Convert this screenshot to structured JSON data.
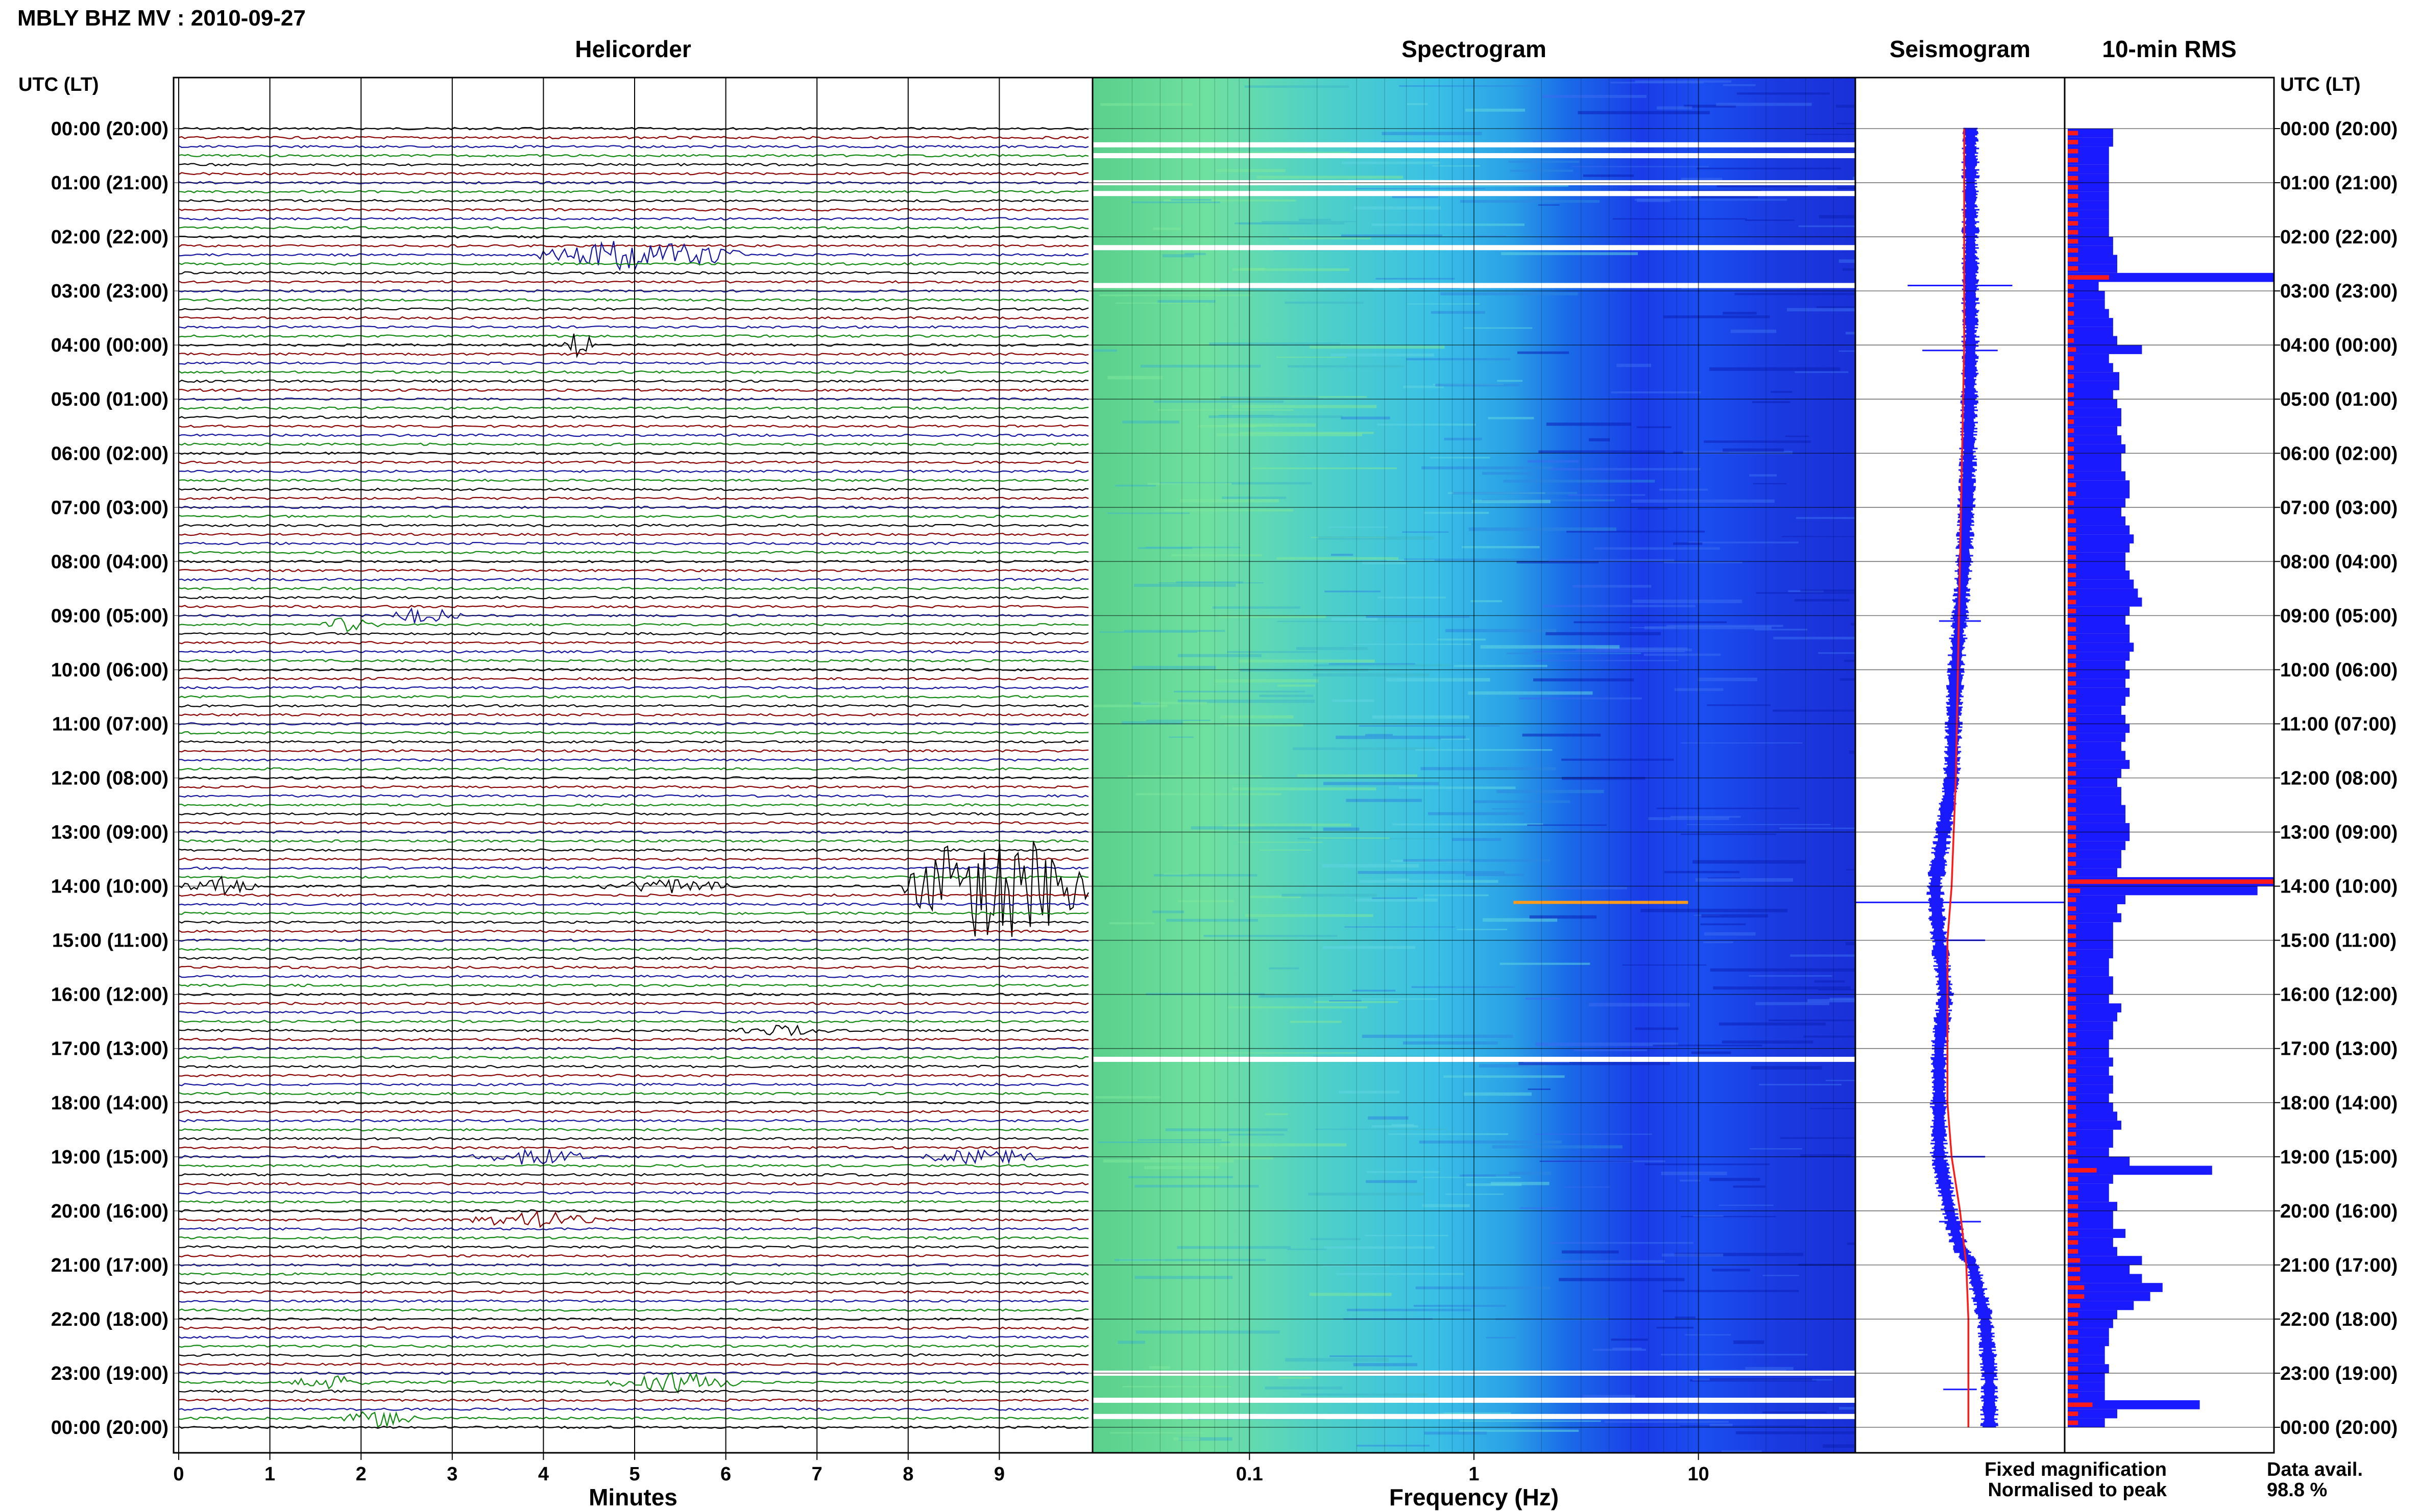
{
  "header": {
    "title": "MBLY BHZ MV : 2010-09-27"
  },
  "panels": {
    "helicorder": "Helicorder",
    "spectrogram": "Spectrogram",
    "seismogram": "Seismogram",
    "rms": "10-min RMS"
  },
  "axes": {
    "utc_label_left": "UTC (LT)",
    "utc_label_right": "UTC (LT)",
    "minutes_label": "Minutes",
    "frequency_label": "Frequency (Hz)"
  },
  "legend": {
    "fixed": "Fixed magnification",
    "normalised": "Normalised to peak",
    "fixed_color": "#1a1aff",
    "normalised_color": "#ff1a1a"
  },
  "availability": {
    "label": "Data avail.",
    "value": "98.8 %"
  },
  "chart_data": [
    {
      "type": "line",
      "title": "Helicorder",
      "xlabel": "Minutes",
      "xlim": [
        0,
        10
      ],
      "x_ticks": [
        "0",
        "1",
        "2",
        "3",
        "4",
        "5",
        "6",
        "7",
        "8",
        "9"
      ],
      "y_ticks": [
        "00:00 (20:00)",
        "01:00 (21:00)",
        "02:00 (22:00)",
        "03:00 (23:00)",
        "04:00 (00:00)",
        "05:00 (01:00)",
        "06:00 (02:00)",
        "07:00 (03:00)",
        "08:00 (04:00)",
        "09:00 (05:00)",
        "10:00 (06:00)",
        "11:00 (07:00)",
        "12:00 (08:00)",
        "13:00 (09:00)",
        "14:00 (10:00)",
        "15:00 (11:00)",
        "16:00 (12:00)",
        "17:00 (13:00)",
        "18:00 (14:00)",
        "19:00 (15:00)",
        "20:00 (16:00)",
        "21:00 (17:00)",
        "22:00 (18:00)",
        "23:00 (19:00)",
        "00:00 (20:00)"
      ],
      "trace_colors": [
        "#000000",
        "#8b0000",
        "#1414a0",
        "#128a12"
      ],
      "traces_per_hour": 6,
      "events": [
        {
          "hour": 2.3,
          "minute_start": 3.9,
          "minute_end": 6.2,
          "amplitude": 0.9,
          "color": "#128a12"
        },
        {
          "hour": 4.0,
          "minute_start": 4.2,
          "minute_end": 4.6,
          "amplitude": 0.8,
          "color": "#000000"
        },
        {
          "hour": 9.0,
          "minute_start": 2.3,
          "minute_end": 3.1,
          "amplitude": 0.5,
          "color": "#1414a0"
        },
        {
          "hour": 9.2,
          "minute_start": 1.5,
          "minute_end": 2.2,
          "amplitude": 0.4,
          "color": "#128a12"
        },
        {
          "hour": 14.0,
          "minute_start": 0.0,
          "minute_end": 0.9,
          "amplitude": 0.5,
          "color": "#1414a0"
        },
        {
          "hour": 14.0,
          "minute_start": 4.6,
          "minute_end": 6.2,
          "amplitude": 0.4,
          "color": "#1414a0"
        },
        {
          "hour": 14.0,
          "minute_start": 7.9,
          "minute_end": 10.0,
          "amplitude": 3.5,
          "color": "#8b0000"
        },
        {
          "hour": 16.6,
          "minute_start": 6.0,
          "minute_end": 7.3,
          "amplitude": 0.3,
          "color": "#000000"
        },
        {
          "hour": 19.0,
          "minute_start": 3.2,
          "minute_end": 4.6,
          "amplitude": 0.5,
          "color": "#1414a0"
        },
        {
          "hour": 19.0,
          "minute_start": 8.1,
          "minute_end": 9.5,
          "amplitude": 0.5,
          "color": "#1414a0"
        },
        {
          "hour": 20.1,
          "minute_start": 3.2,
          "minute_end": 4.6,
          "amplitude": 0.5,
          "color": "#8b0000"
        },
        {
          "hour": 23.2,
          "minute_start": 1.2,
          "minute_end": 2.1,
          "amplitude": 0.4,
          "color": "#000000"
        },
        {
          "hour": 23.2,
          "minute_start": 4.7,
          "minute_end": 6.2,
          "amplitude": 0.6,
          "color": "#000000"
        },
        {
          "hour": 23.9,
          "minute_start": 1.8,
          "minute_end": 2.6,
          "amplitude": 0.5,
          "color": "#128a12"
        }
      ]
    },
    {
      "type": "heatmap",
      "title": "Spectrogram",
      "xlabel": "Frequency (Hz)",
      "x_scale": "log",
      "xlim": [
        0.02,
        50
      ],
      "x_ticks": [
        "0.1",
        "1",
        "10"
      ],
      "gaps_hours": [
        0.3,
        0.5,
        1.0,
        1.2,
        2.2,
        2.9,
        17.2,
        23.0,
        23.5,
        23.8
      ],
      "bands": [
        {
          "from_hz": 0.02,
          "to_hz": 0.1,
          "color": "#5ad08c"
        },
        {
          "from_hz": 0.1,
          "to_hz": 0.5,
          "color": "#4fd0c8"
        },
        {
          "from_hz": 0.5,
          "to_hz": 2,
          "color": "#2aa0e6"
        },
        {
          "from_hz": 2,
          "to_hz": 50,
          "color": "#1a3ce8"
        }
      ]
    },
    {
      "type": "line",
      "title": "Seismogram",
      "series": [
        {
          "name": "Fixed magnification",
          "color": "#1a1aff",
          "hours": [
            0,
            2,
            4,
            6,
            8,
            10,
            12,
            14,
            15,
            16,
            17,
            18,
            19,
            20,
            20.7,
            21,
            22,
            23,
            24
          ],
          "offset": [
            0.55,
            0.55,
            0.55,
            0.54,
            0.52,
            0.48,
            0.46,
            0.38,
            0.4,
            0.43,
            0.4,
            0.4,
            0.4,
            0.45,
            0.5,
            0.56,
            0.62,
            0.64,
            0.64
          ]
        },
        {
          "name": "Normalised to peak",
          "color": "#ff1a1a",
          "hours": [
            0,
            2,
            4,
            6,
            8,
            10,
            12,
            14,
            15,
            16,
            17,
            18,
            19,
            20,
            21,
            22,
            23,
            24
          ],
          "offset": [
            0.52,
            0.52,
            0.52,
            0.51,
            0.5,
            0.49,
            0.48,
            0.46,
            0.44,
            0.44,
            0.44,
            0.44,
            0.46,
            0.5,
            0.53,
            0.54,
            0.54,
            0.54
          ]
        }
      ]
    },
    {
      "type": "bar",
      "title": "10-min RMS",
      "orientation": "horizontal",
      "series": [
        {
          "name": "Fixed magnification",
          "color": "#1a1aff",
          "values": [
            0.22,
            0.22,
            0.2,
            0.2,
            0.2,
            0.2,
            0.2,
            0.2,
            0.2,
            0.2,
            0.2,
            0.2,
            0.22,
            0.22,
            0.24,
            0.24,
            1.0,
            0.15,
            0.18,
            0.18,
            0.2,
            0.22,
            0.22,
            0.24,
            0.36,
            0.2,
            0.22,
            0.25,
            0.25,
            0.22,
            0.24,
            0.26,
            0.26,
            0.24,
            0.26,
            0.28,
            0.26,
            0.26,
            0.28,
            0.3,
            0.3,
            0.28,
            0.26,
            0.28,
            0.3,
            0.32,
            0.3,
            0.28,
            0.28,
            0.3,
            0.32,
            0.34,
            0.36,
            0.3,
            0.28,
            0.3,
            0.3,
            0.32,
            0.3,
            0.28,
            0.3,
            0.28,
            0.3,
            0.28,
            0.26,
            0.28,
            0.3,
            0.28,
            0.26,
            0.28,
            0.3,
            0.26,
            0.24,
            0.26,
            0.26,
            0.28,
            0.28,
            0.3,
            0.3,
            0.28,
            0.26,
            0.26,
            0.24,
            1.0,
            0.92,
            0.28,
            0.24,
            0.26,
            0.22,
            0.22,
            0.22,
            0.22,
            0.2,
            0.2,
            0.22,
            0.22,
            0.2,
            0.26,
            0.24,
            0.22,
            0.22,
            0.2,
            0.2,
            0.22,
            0.2,
            0.22,
            0.22,
            0.2,
            0.22,
            0.24,
            0.26,
            0.22,
            0.22,
            0.2,
            0.3,
            0.7,
            0.22,
            0.2,
            0.2,
            0.24,
            0.22,
            0.22,
            0.28,
            0.22,
            0.24,
            0.36,
            0.3,
            0.36,
            0.46,
            0.4,
            0.32,
            0.24,
            0.22,
            0.2,
            0.2,
            0.18,
            0.18,
            0.2,
            0.18,
            0.18,
            0.18,
            0.64,
            0.24,
            0.18
          ]
        },
        {
          "name": "Normalised to peak",
          "color": "#ff1a1a",
          "values": [
            0.05,
            0.05,
            0.05,
            0.05,
            0.05,
            0.05,
            0.05,
            0.05,
            0.05,
            0.05,
            0.05,
            0.05,
            0.05,
            0.05,
            0.05,
            0.05,
            0.2,
            0.03,
            0.03,
            0.03,
            0.03,
            0.03,
            0.03,
            0.03,
            0.04,
            0.03,
            0.03,
            0.03,
            0.03,
            0.03,
            0.03,
            0.03,
            0.03,
            0.03,
            0.03,
            0.03,
            0.03,
            0.03,
            0.03,
            0.04,
            0.04,
            0.03,
            0.03,
            0.04,
            0.04,
            0.04,
            0.04,
            0.04,
            0.04,
            0.04,
            0.04,
            0.04,
            0.04,
            0.04,
            0.04,
            0.04,
            0.04,
            0.04,
            0.04,
            0.04,
            0.04,
            0.04,
            0.04,
            0.04,
            0.04,
            0.04,
            0.04,
            0.04,
            0.04,
            0.04,
            0.04,
            0.04,
            0.04,
            0.04,
            0.04,
            0.04,
            0.04,
            0.04,
            0.04,
            0.04,
            0.04,
            0.04,
            0.04,
            1.0,
            0.06,
            0.04,
            0.04,
            0.04,
            0.04,
            0.04,
            0.04,
            0.04,
            0.04,
            0.04,
            0.04,
            0.04,
            0.04,
            0.04,
            0.04,
            0.04,
            0.04,
            0.04,
            0.04,
            0.04,
            0.04,
            0.04,
            0.04,
            0.04,
            0.04,
            0.04,
            0.04,
            0.04,
            0.04,
            0.04,
            0.05,
            0.14,
            0.05,
            0.05,
            0.05,
            0.05,
            0.05,
            0.05,
            0.05,
            0.05,
            0.05,
            0.06,
            0.06,
            0.06,
            0.08,
            0.08,
            0.06,
            0.05,
            0.05,
            0.05,
            0.05,
            0.05,
            0.05,
            0.05,
            0.05,
            0.05,
            0.05,
            0.12,
            0.05,
            0.05
          ]
        }
      ]
    }
  ]
}
